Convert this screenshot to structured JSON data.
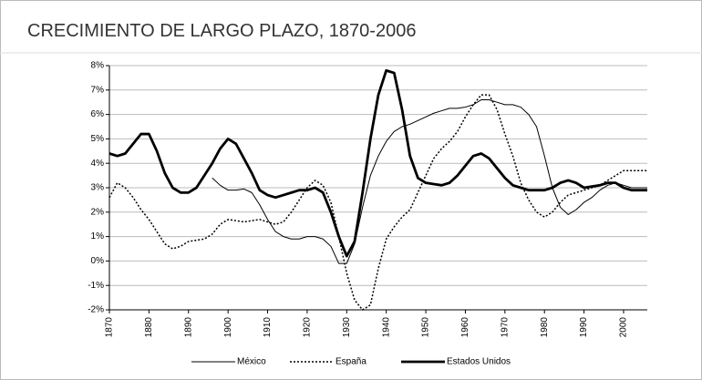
{
  "chart_data": {
    "type": "line",
    "title": "CRECIMIENTO DE LARGO PLAZO, 1870-2006",
    "x": [
      1870,
      1872,
      1874,
      1876,
      1878,
      1880,
      1882,
      1884,
      1886,
      1888,
      1890,
      1892,
      1894,
      1896,
      1898,
      1900,
      1902,
      1904,
      1906,
      1908,
      1910,
      1912,
      1914,
      1916,
      1918,
      1920,
      1922,
      1924,
      1926,
      1928,
      1930,
      1932,
      1934,
      1936,
      1938,
      1940,
      1942,
      1944,
      1946,
      1948,
      1950,
      1952,
      1954,
      1956,
      1958,
      1960,
      1962,
      1964,
      1966,
      1968,
      1970,
      1972,
      1974,
      1976,
      1978,
      1980,
      1982,
      1984,
      1986,
      1988,
      1990,
      1992,
      1994,
      1996,
      1998,
      2000,
      2002,
      2004,
      2006
    ],
    "series": [
      {
        "name": "México",
        "color": "#000000",
        "style": "thin",
        "values": [
          null,
          null,
          null,
          null,
          null,
          null,
          null,
          null,
          null,
          null,
          null,
          null,
          null,
          3.4,
          3.1,
          2.9,
          2.9,
          2.95,
          2.8,
          2.3,
          1.7,
          1.2,
          1.0,
          0.9,
          0.9,
          1.0,
          1.0,
          0.9,
          0.6,
          -0.1,
          -0.1,
          0.7,
          2.2,
          3.5,
          4.3,
          4.9,
          5.3,
          5.5,
          5.6,
          5.75,
          5.9,
          6.05,
          6.15,
          6.25,
          6.25,
          6.3,
          6.4,
          6.6,
          6.6,
          6.5,
          6.4,
          6.4,
          6.3,
          6.0,
          5.5,
          4.3,
          3.0,
          2.2,
          1.9,
          2.1,
          2.4,
          2.6,
          2.9,
          3.1,
          3.2,
          3.1,
          3.0,
          3.0,
          3.0
        ]
      },
      {
        "name": "España",
        "color": "#000000",
        "style": "dotted",
        "values": [
          2.6,
          3.2,
          3.0,
          2.6,
          2.1,
          1.7,
          1.2,
          0.7,
          0.5,
          0.6,
          0.8,
          0.85,
          0.9,
          1.1,
          1.5,
          1.7,
          1.65,
          1.6,
          1.65,
          1.7,
          1.6,
          1.5,
          1.6,
          2.0,
          2.5,
          3.0,
          3.3,
          3.1,
          2.4,
          1.0,
          -0.5,
          -1.6,
          -2.0,
          -1.8,
          -0.3,
          0.9,
          1.4,
          1.8,
          2.1,
          2.8,
          3.5,
          4.2,
          4.6,
          4.9,
          5.3,
          5.9,
          6.4,
          6.8,
          6.8,
          6.2,
          5.2,
          4.3,
          3.2,
          2.5,
          2.0,
          1.8,
          2.0,
          2.4,
          2.7,
          2.8,
          2.9,
          3.0,
          3.1,
          3.3,
          3.5,
          3.7,
          3.7,
          3.7,
          3.7
        ]
      },
      {
        "name": "Estados Unidos",
        "color": "#000000",
        "style": "thick",
        "values": [
          4.4,
          4.3,
          4.4,
          4.8,
          5.2,
          5.2,
          4.5,
          3.6,
          3.0,
          2.8,
          2.8,
          3.0,
          3.5,
          4.0,
          4.6,
          5.0,
          4.8,
          4.2,
          3.6,
          2.9,
          2.7,
          2.6,
          2.7,
          2.8,
          2.9,
          2.9,
          3.0,
          2.8,
          2.0,
          1.0,
          0.2,
          0.8,
          2.8,
          5.0,
          6.8,
          7.8,
          7.7,
          6.2,
          4.3,
          3.4,
          3.2,
          3.15,
          3.1,
          3.2,
          3.5,
          3.9,
          4.3,
          4.4,
          4.2,
          3.8,
          3.4,
          3.1,
          3.0,
          2.9,
          2.9,
          2.9,
          3.0,
          3.2,
          3.3,
          3.2,
          3.0,
          3.05,
          3.1,
          3.2,
          3.2,
          3.0,
          2.9,
          2.9,
          2.9
        ]
      }
    ],
    "xlim": [
      1870,
      2006
    ],
    "xticks": [
      1870,
      1880,
      1890,
      1900,
      1910,
      1920,
      1930,
      1940,
      1950,
      1960,
      1970,
      1980,
      1990,
      2000
    ],
    "ylim": [
      -2,
      8
    ],
    "yticks": [
      {
        "value": -2,
        "label": "-2%"
      },
      {
        "value": -1,
        "label": "-1%"
      },
      {
        "value": 0,
        "label": "0%"
      },
      {
        "value": 1,
        "label": "1%"
      },
      {
        "value": 2,
        "label": "2%"
      },
      {
        "value": 3,
        "label": "3%"
      },
      {
        "value": 4,
        "label": "4%"
      },
      {
        "value": 5,
        "label": "5%"
      },
      {
        "value": 6,
        "label": "6%"
      },
      {
        "value": 7,
        "label": "7%"
      },
      {
        "value": 8,
        "label": "8%"
      }
    ],
    "grid": true,
    "legend": "bottom"
  }
}
